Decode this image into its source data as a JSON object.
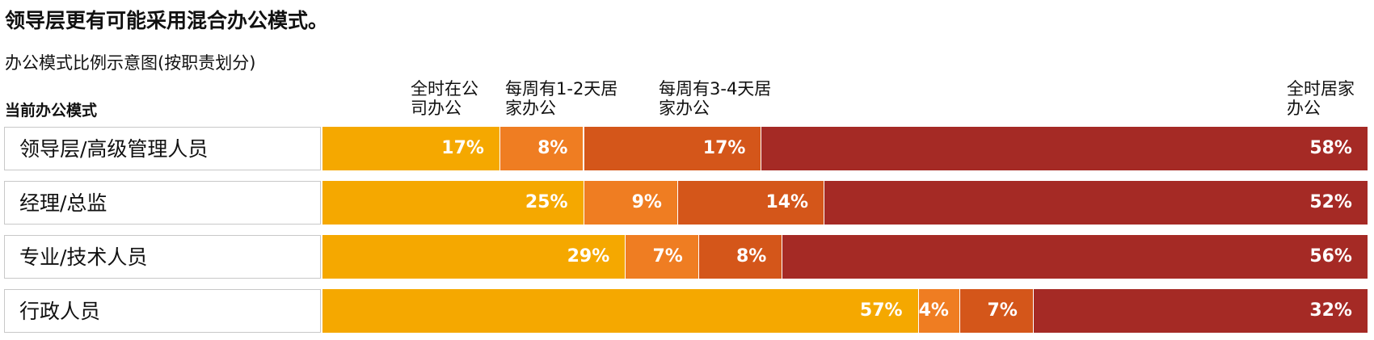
{
  "chart_data": {
    "type": "stacked-bar-horizontal",
    "title": "领导层更有可能采用混合办公模式。",
    "subtitle": "办公模式比例示意图(按职责划分)",
    "category_axis_label": "当前办公模式",
    "categories": [
      "领导层/高级管理人员",
      "经理/总监",
      "专业/技术人员",
      "行政人员"
    ],
    "xlim": [
      0,
      100
    ],
    "series": [
      {
        "name": "全时在公司办公",
        "color": "#f5a800",
        "values": [
          17,
          25,
          29,
          57
        ],
        "value_labels": [
          "17%",
          "25%",
          "29%",
          "57%"
        ]
      },
      {
        "name": "每周有1-2天居家办公",
        "color": "#ef7d22",
        "values": [
          8,
          9,
          7,
          4
        ],
        "value_labels": [
          "8%",
          "9%",
          "7%",
          "4%"
        ]
      },
      {
        "name": "每周有3-4天居家办公",
        "color": "#d4561a",
        "values": [
          17,
          14,
          8,
          7
        ],
        "value_labels": [
          "17%",
          "14%",
          "8%",
          "7%"
        ]
      },
      {
        "name": "全时居家办公",
        "color": "#a52a25",
        "values": [
          58,
          52,
          56,
          32
        ],
        "value_labels": [
          "58%",
          "52%",
          "56%",
          "32%"
        ]
      }
    ]
  }
}
